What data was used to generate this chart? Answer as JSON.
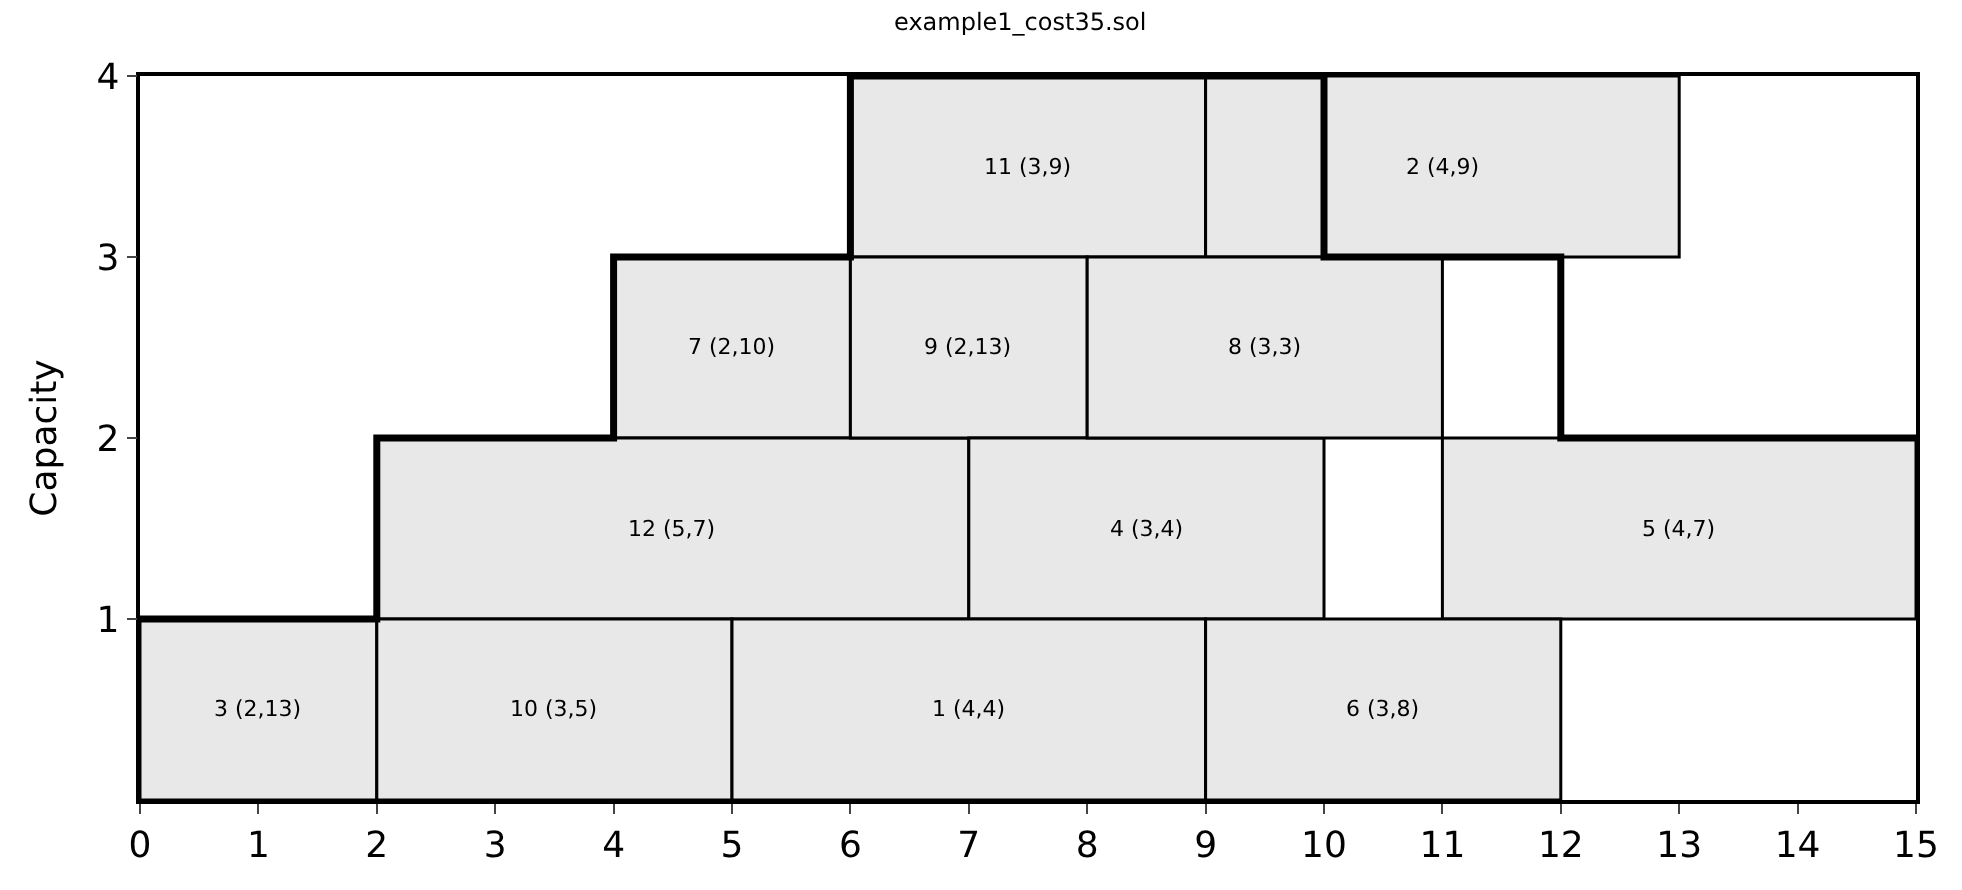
{
  "chart_data": {
    "type": "bar",
    "orientation": "horizontal",
    "title": "example1_cost35.sol",
    "ylabel": "Capacity",
    "xlim": [
      0,
      15
    ],
    "xticks": [
      0,
      1,
      2,
      3,
      4,
      5,
      6,
      7,
      8,
      9,
      10,
      11,
      12,
      13,
      14,
      15
    ],
    "ylim": [
      0,
      4
    ],
    "yticks": [
      1,
      2,
      3,
      4
    ],
    "series": [
      {
        "color": "#e8e8e8",
        "x": [
          3.5,
          2.5,
          1.5,
          0.5
        ],
        "base": [
          6,
          4,
          2,
          0
        ],
        "values": [
          3,
          2,
          5,
          2
        ]
      },
      {
        "color": "#e8e8e8",
        "x": [
          3.5,
          2.5,
          1.5,
          0.5
        ],
        "base": [
          9,
          6,
          7,
          2
        ],
        "values": [
          4,
          2,
          3,
          3
        ]
      },
      {
        "color": "#e8e8e8",
        "x": [
          2.5,
          1.5,
          0.5
        ],
        "base": [
          8,
          11,
          5
        ],
        "values": [
          3,
          4,
          4
        ]
      },
      {
        "color": "#e8e8e8",
        "x": [
          0.5
        ],
        "base": [
          9
        ],
        "values": [
          3
        ]
      },
      {
        "type": "line",
        "color": "#000000",
        "x": [
          1,
          1,
          2,
          2,
          3,
          3,
          4,
          4,
          3,
          3,
          2,
          2
        ],
        "values": [
          0,
          2,
          2,
          4,
          4,
          6,
          6,
          10,
          10,
          12,
          12,
          15
        ]
      }
    ],
    "annotations": [
      "11 (3,9)",
      "7 (2,10)",
      "12 (5,7)",
      "3 (2,13)",
      "2 (4,9)",
      "9 (2,13)",
      "4 (3,4)",
      "10 (3,5)",
      "8 (3,3)",
      "5 (4,7)",
      "1 (4,4)",
      "6 (3,8)"
    ]
  }
}
